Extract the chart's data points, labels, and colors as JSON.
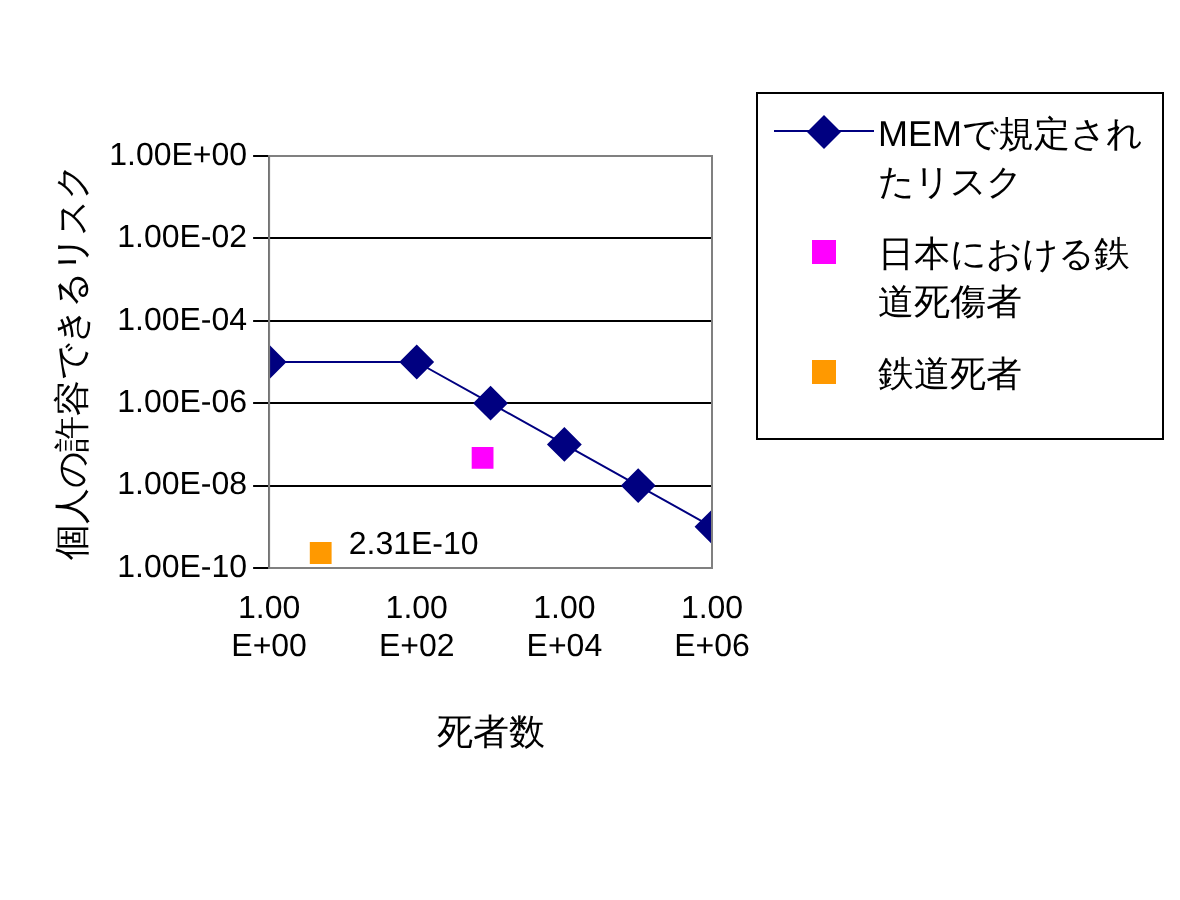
{
  "chart_data": {
    "type": "line",
    "xlabel": "死者数",
    "ylabel": "個人の許容できるリスク",
    "log": "xy",
    "grid": "y",
    "legend": "right",
    "xlim": [
      1,
      1000000
    ],
    "xticks": [
      {
        "value": 1,
        "label": "1.00E+00"
      },
      {
        "value": 100,
        "label": "1.00E+02"
      },
      {
        "value": 10000,
        "label": "1.00E+04"
      },
      {
        "value": 1000000,
        "label": "1.00E+06"
      }
    ],
    "ylim": [
      1e-10,
      1
    ],
    "yticks": [
      {
        "value": 1,
        "label": "1.00E+00"
      },
      {
        "value": 0.01,
        "label": "1.00E-02"
      },
      {
        "value": 0.0001,
        "label": "1.00E-04"
      },
      {
        "value": 1e-06,
        "label": "1.00E-06"
      },
      {
        "value": 1e-08,
        "label": "1.00E-08"
      },
      {
        "value": 1e-10,
        "label": "1.00E-10"
      }
    ],
    "series": [
      {
        "name": "MEMで規定されたリスク",
        "color": "#000080",
        "marker": "diamond",
        "line_style": "solid",
        "x": [
          1,
          100,
          1000,
          10000,
          100000,
          1000000
        ],
        "values": [
          1e-05,
          1e-05,
          1e-06,
          1e-07,
          1e-08,
          1e-09
        ]
      },
      {
        "name": "日本における鉄道死傷者",
        "type": "scatter",
        "color": "#ff00ff",
        "marker": "square",
        "x": [
          780
        ],
        "values": [
          4.7e-08
        ]
      },
      {
        "name": "鉄道死者",
        "type": "scatter",
        "color": "#ff9900",
        "marker": "square",
        "x": [
          5
        ],
        "values": [
          2.31e-10
        ],
        "value_labels": [
          "2.31E-10"
        ]
      }
    ]
  }
}
